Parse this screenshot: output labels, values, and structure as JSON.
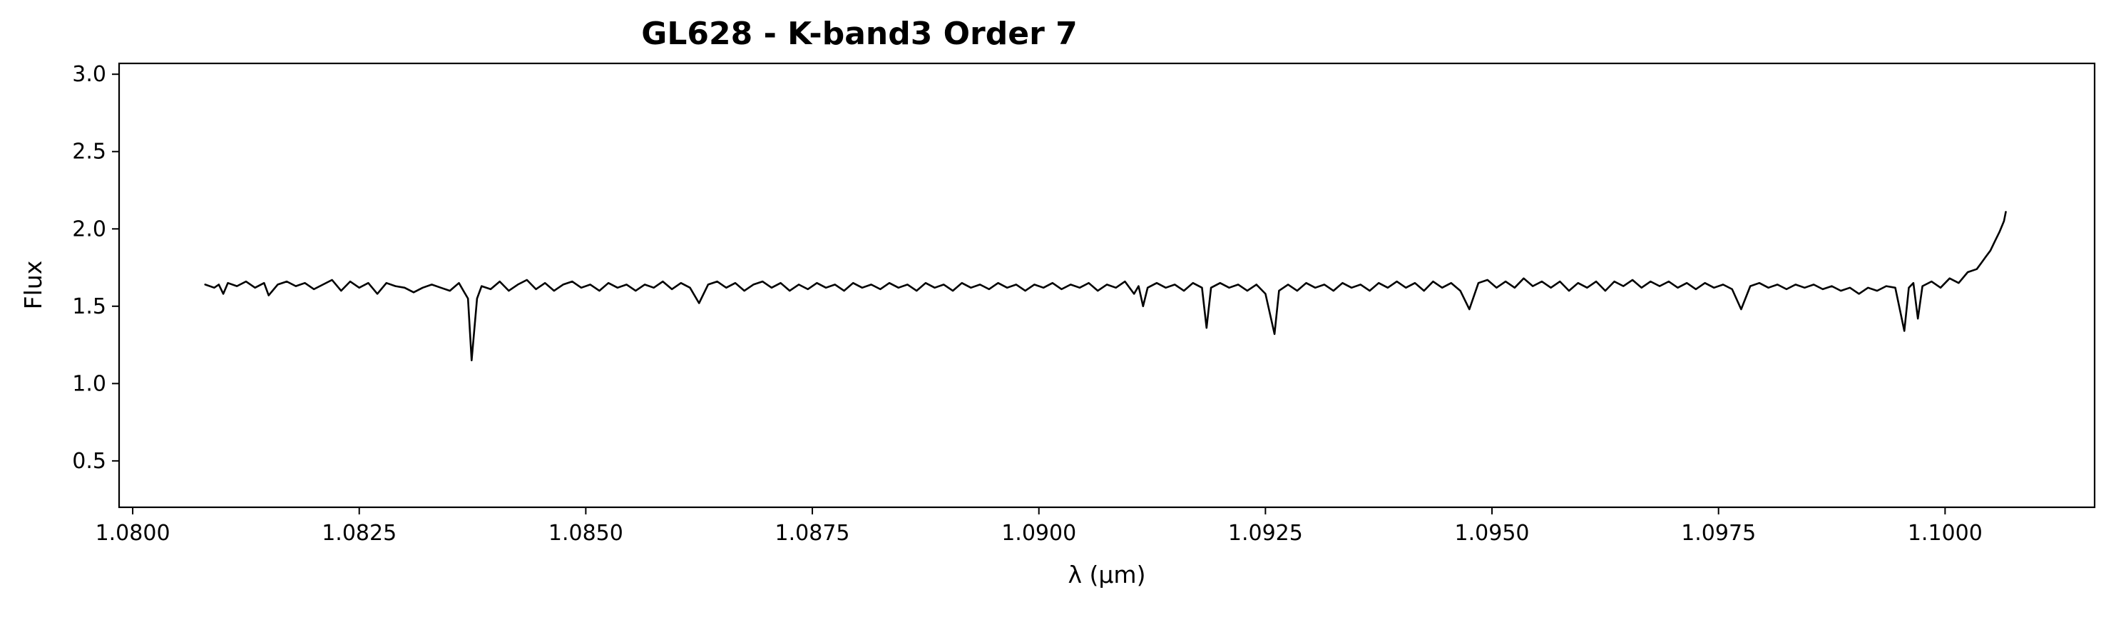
{
  "chart_data": {
    "type": "line",
    "title": "GL628 - K-band3 Order 7",
    "xlabel": "λ (μm)",
    "ylabel": "Flux",
    "xlim": [
      1.07985,
      1.10165
    ],
    "ylim": [
      0.2,
      3.07
    ],
    "xscale": "linear",
    "yscale": "linear",
    "grid": false,
    "legend": "none",
    "line_color": "#000000",
    "x_ticks": [
      1.08,
      1.0825,
      1.085,
      1.0875,
      1.09,
      1.0925,
      1.095,
      1.0975,
      1.1
    ],
    "x_tick_labels": [
      "1.0800",
      "1.0825",
      "1.0850",
      "1.0875",
      "1.0900",
      "1.0925",
      "1.0950",
      "1.0975",
      "1.1000"
    ],
    "y_ticks": [
      0.5,
      1.0,
      1.5,
      2.0,
      2.5,
      3.0
    ],
    "y_tick_labels": [
      "0.5",
      "1.0",
      "1.5",
      "2.0",
      "2.5",
      "3.0"
    ],
    "series": [
      {
        "points": [
          [
            1.0808,
            1.64
          ],
          [
            1.0809,
            1.62
          ],
          [
            1.08095,
            1.64
          ],
          [
            1.081,
            1.58
          ],
          [
            1.08105,
            1.65
          ],
          [
            1.08115,
            1.63
          ],
          [
            1.08125,
            1.66
          ],
          [
            1.08135,
            1.62
          ],
          [
            1.08145,
            1.65
          ],
          [
            1.0815,
            1.57
          ],
          [
            1.0816,
            1.64
          ],
          [
            1.0817,
            1.66
          ],
          [
            1.0818,
            1.63
          ],
          [
            1.0819,
            1.65
          ],
          [
            1.082,
            1.61
          ],
          [
            1.0821,
            1.64
          ],
          [
            1.0822,
            1.67
          ],
          [
            1.0823,
            1.6
          ],
          [
            1.0824,
            1.66
          ],
          [
            1.0825,
            1.62
          ],
          [
            1.0826,
            1.65
          ],
          [
            1.0827,
            1.58
          ],
          [
            1.0828,
            1.65
          ],
          [
            1.0829,
            1.63
          ],
          [
            1.083,
            1.62
          ],
          [
            1.0831,
            1.59
          ],
          [
            1.0832,
            1.62
          ],
          [
            1.0833,
            1.64
          ],
          [
            1.0834,
            1.62
          ],
          [
            1.0835,
            1.6
          ],
          [
            1.0836,
            1.65
          ],
          [
            1.08365,
            1.6
          ],
          [
            1.0837,
            1.55
          ],
          [
            1.08374,
            1.15
          ],
          [
            1.0838,
            1.55
          ],
          [
            1.08385,
            1.63
          ],
          [
            1.08395,
            1.61
          ],
          [
            1.08405,
            1.66
          ],
          [
            1.08415,
            1.6
          ],
          [
            1.08425,
            1.64
          ],
          [
            1.08435,
            1.67
          ],
          [
            1.08445,
            1.61
          ],
          [
            1.08455,
            1.65
          ],
          [
            1.08465,
            1.6
          ],
          [
            1.08475,
            1.64
          ],
          [
            1.08485,
            1.66
          ],
          [
            1.08495,
            1.62
          ],
          [
            1.08505,
            1.64
          ],
          [
            1.08515,
            1.6
          ],
          [
            1.08525,
            1.65
          ],
          [
            1.08535,
            1.62
          ],
          [
            1.08545,
            1.64
          ],
          [
            1.08555,
            1.6
          ],
          [
            1.08565,
            1.64
          ],
          [
            1.08575,
            1.62
          ],
          [
            1.08585,
            1.66
          ],
          [
            1.08595,
            1.61
          ],
          [
            1.08605,
            1.65
          ],
          [
            1.08615,
            1.62
          ],
          [
            1.08625,
            1.52
          ],
          [
            1.08635,
            1.64
          ],
          [
            1.08645,
            1.66
          ],
          [
            1.08655,
            1.62
          ],
          [
            1.08665,
            1.65
          ],
          [
            1.08675,
            1.6
          ],
          [
            1.08685,
            1.64
          ],
          [
            1.08695,
            1.66
          ],
          [
            1.08705,
            1.62
          ],
          [
            1.08715,
            1.65
          ],
          [
            1.08725,
            1.6
          ],
          [
            1.08735,
            1.64
          ],
          [
            1.08745,
            1.61
          ],
          [
            1.08755,
            1.65
          ],
          [
            1.08765,
            1.62
          ],
          [
            1.08775,
            1.64
          ],
          [
            1.08785,
            1.6
          ],
          [
            1.08795,
            1.65
          ],
          [
            1.08805,
            1.62
          ],
          [
            1.08815,
            1.64
          ],
          [
            1.08825,
            1.61
          ],
          [
            1.08835,
            1.65
          ],
          [
            1.08845,
            1.62
          ],
          [
            1.08855,
            1.64
          ],
          [
            1.08865,
            1.6
          ],
          [
            1.08875,
            1.65
          ],
          [
            1.08885,
            1.62
          ],
          [
            1.08895,
            1.64
          ],
          [
            1.08905,
            1.6
          ],
          [
            1.08915,
            1.65
          ],
          [
            1.08925,
            1.62
          ],
          [
            1.08935,
            1.64
          ],
          [
            1.08945,
            1.61
          ],
          [
            1.08955,
            1.65
          ],
          [
            1.08965,
            1.62
          ],
          [
            1.08975,
            1.64
          ],
          [
            1.08985,
            1.6
          ],
          [
            1.08995,
            1.64
          ],
          [
            1.09005,
            1.62
          ],
          [
            1.09015,
            1.65
          ],
          [
            1.09025,
            1.61
          ],
          [
            1.09035,
            1.64
          ],
          [
            1.09045,
            1.62
          ],
          [
            1.09055,
            1.65
          ],
          [
            1.09065,
            1.6
          ],
          [
            1.09075,
            1.64
          ],
          [
            1.09085,
            1.62
          ],
          [
            1.09095,
            1.66
          ],
          [
            1.09105,
            1.58
          ],
          [
            1.0911,
            1.63
          ],
          [
            1.09115,
            1.5
          ],
          [
            1.0912,
            1.62
          ],
          [
            1.0913,
            1.65
          ],
          [
            1.0914,
            1.62
          ],
          [
            1.0915,
            1.64
          ],
          [
            1.0916,
            1.6
          ],
          [
            1.0917,
            1.65
          ],
          [
            1.0918,
            1.62
          ],
          [
            1.09185,
            1.36
          ],
          [
            1.0919,
            1.62
          ],
          [
            1.092,
            1.65
          ],
          [
            1.0921,
            1.62
          ],
          [
            1.0922,
            1.64
          ],
          [
            1.0923,
            1.6
          ],
          [
            1.0924,
            1.64
          ],
          [
            1.0925,
            1.58
          ],
          [
            1.0926,
            1.32
          ],
          [
            1.09265,
            1.6
          ],
          [
            1.09275,
            1.64
          ],
          [
            1.09285,
            1.6
          ],
          [
            1.09295,
            1.65
          ],
          [
            1.09305,
            1.62
          ],
          [
            1.09315,
            1.64
          ],
          [
            1.09325,
            1.6
          ],
          [
            1.09335,
            1.65
          ],
          [
            1.09345,
            1.62
          ],
          [
            1.09355,
            1.64
          ],
          [
            1.09365,
            1.6
          ],
          [
            1.09375,
            1.65
          ],
          [
            1.09385,
            1.62
          ],
          [
            1.09395,
            1.66
          ],
          [
            1.09405,
            1.62
          ],
          [
            1.09415,
            1.65
          ],
          [
            1.09425,
            1.6
          ],
          [
            1.09435,
            1.66
          ],
          [
            1.09445,
            1.62
          ],
          [
            1.09455,
            1.65
          ],
          [
            1.09465,
            1.6
          ],
          [
            1.09475,
            1.48
          ],
          [
            1.09485,
            1.65
          ],
          [
            1.09495,
            1.67
          ],
          [
            1.09505,
            1.62
          ],
          [
            1.09515,
            1.66
          ],
          [
            1.09525,
            1.62
          ],
          [
            1.09535,
            1.68
          ],
          [
            1.09545,
            1.63
          ],
          [
            1.09555,
            1.66
          ],
          [
            1.09565,
            1.62
          ],
          [
            1.09575,
            1.66
          ],
          [
            1.09585,
            1.6
          ],
          [
            1.09595,
            1.65
          ],
          [
            1.09605,
            1.62
          ],
          [
            1.09615,
            1.66
          ],
          [
            1.09625,
            1.6
          ],
          [
            1.09635,
            1.66
          ],
          [
            1.09645,
            1.63
          ],
          [
            1.09655,
            1.67
          ],
          [
            1.09665,
            1.62
          ],
          [
            1.09675,
            1.66
          ],
          [
            1.09685,
            1.63
          ],
          [
            1.09695,
            1.66
          ],
          [
            1.09705,
            1.62
          ],
          [
            1.09715,
            1.65
          ],
          [
            1.09725,
            1.61
          ],
          [
            1.09735,
            1.65
          ],
          [
            1.09745,
            1.62
          ],
          [
            1.09755,
            1.64
          ],
          [
            1.09765,
            1.61
          ],
          [
            1.09775,
            1.48
          ],
          [
            1.09785,
            1.63
          ],
          [
            1.09795,
            1.65
          ],
          [
            1.09805,
            1.62
          ],
          [
            1.09815,
            1.64
          ],
          [
            1.09825,
            1.61
          ],
          [
            1.09835,
            1.64
          ],
          [
            1.09845,
            1.62
          ],
          [
            1.09855,
            1.64
          ],
          [
            1.09865,
            1.61
          ],
          [
            1.09875,
            1.63
          ],
          [
            1.09885,
            1.6
          ],
          [
            1.09895,
            1.62
          ],
          [
            1.09905,
            1.58
          ],
          [
            1.09915,
            1.62
          ],
          [
            1.09925,
            1.6
          ],
          [
            1.09935,
            1.63
          ],
          [
            1.09945,
            1.62
          ],
          [
            1.09955,
            1.34
          ],
          [
            1.0996,
            1.62
          ],
          [
            1.09965,
            1.65
          ],
          [
            1.0997,
            1.42
          ],
          [
            1.09975,
            1.63
          ],
          [
            1.09985,
            1.66
          ],
          [
            1.09995,
            1.62
          ],
          [
            1.10005,
            1.68
          ],
          [
            1.10015,
            1.65
          ],
          [
            1.10025,
            1.72
          ],
          [
            1.10035,
            1.74
          ],
          [
            1.1004,
            1.78
          ],
          [
            1.10045,
            1.82
          ],
          [
            1.1005,
            1.86
          ],
          [
            1.10055,
            1.92
          ],
          [
            1.1006,
            1.98
          ],
          [
            1.10065,
            2.05
          ],
          [
            1.10067,
            2.11
          ]
        ]
      }
    ]
  }
}
